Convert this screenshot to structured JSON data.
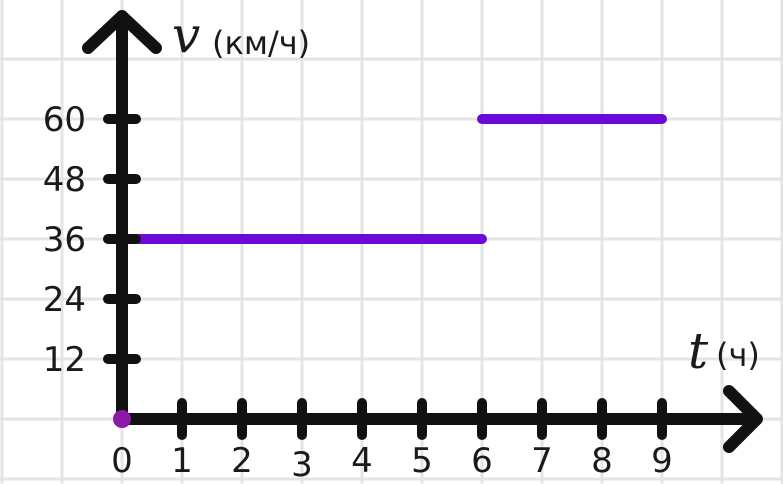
{
  "chart_data": {
    "type": "line",
    "title": "",
    "xlabel": {
      "symbol": "t",
      "unit": "(ч)"
    },
    "ylabel": {
      "symbol": "v",
      "unit": "(км/ч)"
    },
    "xlim": [
      0,
      10.5
    ],
    "ylim": [
      0,
      72
    ],
    "x_ticks": [
      "0",
      "1",
      "2",
      "3",
      "4",
      "5",
      "6",
      "7",
      "8",
      "9"
    ],
    "y_ticks": [
      "12",
      "24",
      "36",
      "48",
      "60"
    ],
    "grid": true,
    "series": [
      {
        "color": "#6b0ad6",
        "segments": [
          {
            "x": [
              0,
              6
            ],
            "y": [
              36,
              36
            ]
          },
          {
            "x": [
              6,
              9
            ],
            "y": [
              60,
              60
            ]
          }
        ]
      }
    ],
    "origin_marker_color": "#8a1aa8",
    "axis_color": "#111111",
    "grid_color": "#e4e4e4"
  }
}
